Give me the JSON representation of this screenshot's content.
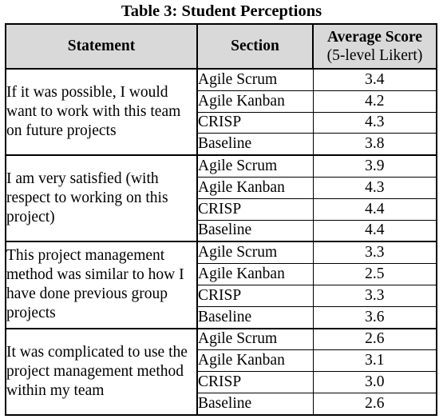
{
  "caption": "Table 3: Student Perceptions",
  "headers": {
    "statement": "Statement",
    "section": "Section",
    "score_title": "Average Score",
    "score_sub": "(5-level Likert)"
  },
  "groups": [
    {
      "statement": "If it was possible, I would want to work with this team on future projects",
      "rows": [
        {
          "section": "Agile Scrum",
          "score": "3.4"
        },
        {
          "section": "Agile Kanban",
          "score": "4.2"
        },
        {
          "section": "CRISP",
          "score": "4.3"
        },
        {
          "section": "Baseline",
          "score": "3.8"
        }
      ]
    },
    {
      "statement": "I am very satisfied (with respect to working on this project)",
      "rows": [
        {
          "section": "Agile Scrum",
          "score": "3.9"
        },
        {
          "section": "Agile Kanban",
          "score": "4.3"
        },
        {
          "section": "CRISP",
          "score": "4.4"
        },
        {
          "section": "Baseline",
          "score": "4.4"
        }
      ]
    },
    {
      "statement": "This project management method was similar to how I have done previous group projects",
      "rows": [
        {
          "section": "Agile Scrum",
          "score": "3.3"
        },
        {
          "section": "Agile Kanban",
          "score": "2.5"
        },
        {
          "section": "CRISP",
          "score": "3.3"
        },
        {
          "section": "Baseline",
          "score": "3.6"
        }
      ]
    },
    {
      "statement": "It was complicated to use the project management method within my team",
      "rows": [
        {
          "section": "Agile Scrum",
          "score": "2.6"
        },
        {
          "section": "Agile Kanban",
          "score": "3.1"
        },
        {
          "section": "CRISP",
          "score": "3.0"
        },
        {
          "section": "Baseline",
          "score": "2.6"
        }
      ]
    }
  ]
}
